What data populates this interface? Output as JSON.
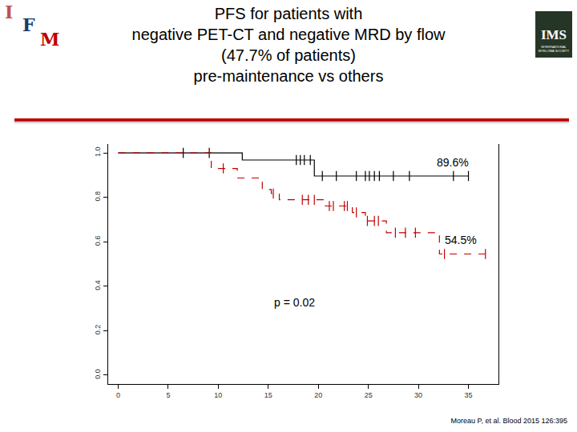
{
  "slide": {
    "logo_left": [
      "I",
      "F",
      "M"
    ],
    "logo_right": {
      "text": "IMS",
      "subtext": "INTERNATIONAL MYELOMA SOCIETY"
    },
    "footnote": "Moreau P, et al. Blood 2015 126:395"
  },
  "chart_data": {
    "type": "survival",
    "title": "PFS for patients with\nnegative PET-CT and negative MRD by flow\n(47.7% of patients)\npre-maintenance vs others",
    "xlim": [
      -1,
      38
    ],
    "xticks": [
      0,
      5,
      10,
      15,
      20,
      25,
      30,
      35
    ],
    "ylim": [
      -0.04,
      1.04
    ],
    "yticks": [
      {
        "value": 0,
        "label": "0.0"
      },
      {
        "value": 0.2,
        "label": "0.2"
      },
      {
        "value": 0.4,
        "label": "0.4"
      },
      {
        "value": 0.6,
        "label": "0.6"
      },
      {
        "value": 0.8,
        "label": "0.8"
      },
      {
        "value": 1,
        "label": "1.0"
      }
    ],
    "grid": false,
    "series": [
      {
        "color": "#000000",
        "line_style": "solid",
        "marker": "line-ns",
        "x": [
          0,
          12.4,
          19.6,
          35
        ],
        "values": [
          1.0,
          0.968,
          0.896,
          0.896
        ],
        "censored_x": [
          6.5,
          9.1,
          17.8,
          18.2,
          18.6,
          19.2,
          20.4,
          21.8,
          23.8,
          24.7,
          25.1,
          25.6,
          26.1,
          27.5,
          29.1,
          33.5,
          35.0
        ]
      },
      {
        "color": "#c00000",
        "line_style": "dashed",
        "marker": "line-ns",
        "x": [
          0,
          9.3,
          11.9,
          14.4,
          15.3,
          16.1,
          20.7,
          23.4,
          24.7,
          26.8,
          32.1,
          36.7
        ],
        "values": [
          1.0,
          0.93,
          0.887,
          0.835,
          0.817,
          0.789,
          0.761,
          0.732,
          0.694,
          0.641,
          0.545,
          0.545
        ],
        "censored_x": [
          10.5,
          15.5,
          18.4,
          19.0,
          19.6,
          21.1,
          21.5,
          22.6,
          22.9,
          23.8,
          24.9,
          25.6,
          26.0,
          27.7,
          28.7,
          29.7,
          32.6,
          36.7
        ]
      }
    ],
    "annotations": [
      {
        "text": "89.6%"
      },
      {
        "text": "54.5%"
      },
      {
        "text": "p = 0.02"
      }
    ]
  }
}
